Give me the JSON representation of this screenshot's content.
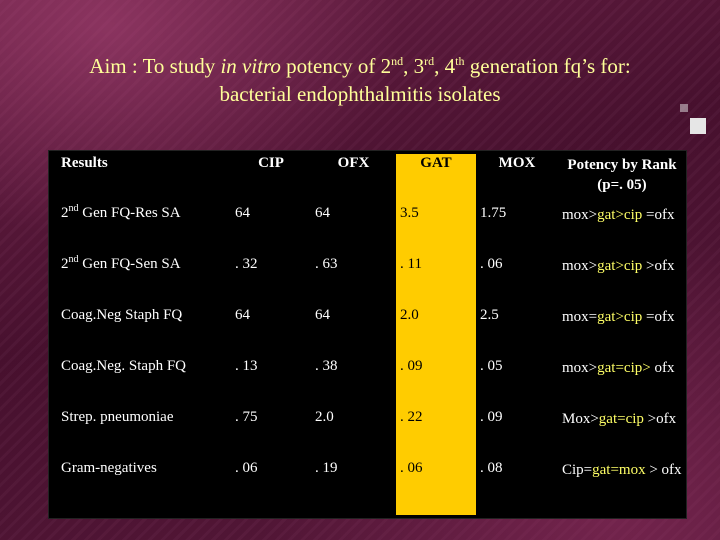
{
  "title": {
    "line1_prefix": "Aim : To study ",
    "line1_em": "in vitro",
    "line1_a": " potency of 2",
    "sup1": "nd",
    "line1_b": ", 3",
    "sup2": "rd",
    "line1_c": ", 4",
    "sup3": "th",
    "line1_d": " generation fq’s for:",
    "line2": "bacterial endophthalmitis isolates"
  },
  "colors": {
    "title": "#ffff99",
    "gat_column": "#ffcc00",
    "highlight": "#ffff66",
    "table_bg": "#000000"
  },
  "table": {
    "headers": {
      "results": "Results",
      "cip": "CIP",
      "ofx": "OFX",
      "gat": "GAT",
      "mox": "MOX",
      "potency": "Potency by Rank (p=. 05)"
    },
    "rows": [
      {
        "label_pre": "2",
        "label_sup": "nd",
        "label_post": " Gen FQ-Res SA",
        "cip": "64",
        "ofx": "64",
        "gat": "3.5",
        "mox": "1.75",
        "rank_a": "mox>",
        "rank_hl": "gat>cip",
        "rank_b": " =ofx"
      },
      {
        "label_pre": "2",
        "label_sup": "nd",
        "label_post": " Gen FQ-Sen SA",
        "cip": ". 32",
        "ofx": ". 63",
        "gat": ". 11",
        "mox": ". 06",
        "rank_a": "mox>",
        "rank_hl": "gat>cip",
        "rank_b": " >ofx"
      },
      {
        "label_pre": "Coag.Neg Staph FQ",
        "label_sup": "",
        "label_post": "",
        "cip": "64",
        "ofx": "64",
        "gat": "2.0",
        "mox": "2.5",
        "rank_a": "mox=",
        "rank_hl": "gat>cip",
        "rank_b": " =ofx"
      },
      {
        "label_pre": "Coag.Neg. Staph FQ",
        "label_sup": "",
        "label_post": "",
        "cip": ". 13",
        "ofx": ". 38",
        "gat": ". 09",
        "mox": ". 05",
        "rank_a": "mox>",
        "rank_hl": "gat=cip>",
        "rank_b": " ofx"
      },
      {
        "label_pre": "Strep. pneumoniae",
        "label_sup": "",
        "label_post": "",
        "cip": ". 75",
        "ofx": "2.0",
        "gat": ". 22",
        "mox": ". 09",
        "rank_a": "Mox>",
        "rank_hl": "gat=cip",
        "rank_b": " >ofx"
      },
      {
        "label_pre": "Gram-negatives",
        "label_sup": "",
        "label_post": "",
        "cip": ". 06",
        "ofx": ". 19",
        "gat": ". 06",
        "mox": ". 08",
        "rank_a": "Cip=",
        "rank_hl": "gat=mox",
        "rank_b": " > ofx"
      }
    ]
  }
}
